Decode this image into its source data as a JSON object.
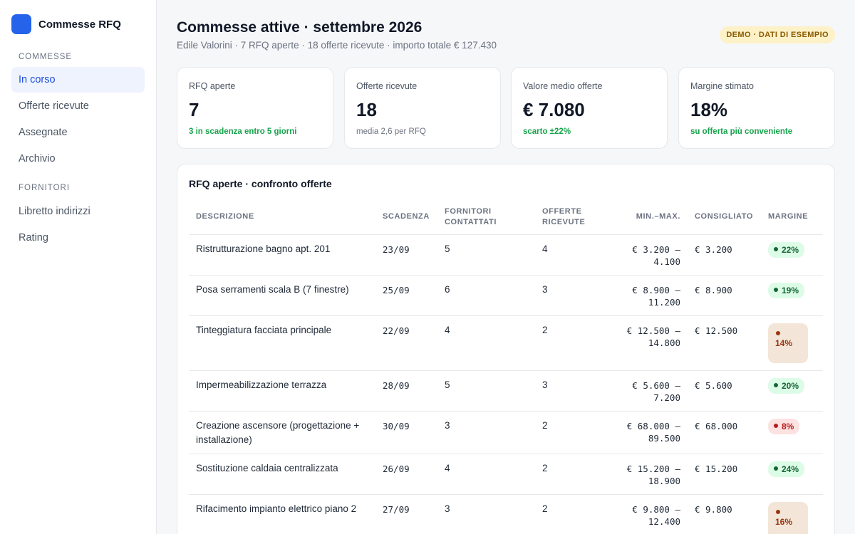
{
  "sidebar": {
    "brand": "Commesse RFQ",
    "sections": [
      {
        "title": "COMMESSE",
        "items": [
          "In corso",
          "Offerte ricevute",
          "Assegnate",
          "Archivio"
        ]
      },
      {
        "title": "FORNITORI",
        "items": [
          "Libretto indirizzi",
          "Rating"
        ]
      }
    ],
    "active_item": "In corso"
  },
  "header": {
    "title": "Commesse attive · settembre 2026",
    "subtitle": "Edile Valorini · 7 RFQ aperte · 18 offerte ricevute · importo totale € 127.430",
    "badge": "DEMO · DATI DI ESEMPIO"
  },
  "kpis": [
    {
      "label": "RFQ aperte",
      "value": "7",
      "note": "3 in scadenza entro 5 giorni",
      "note_style": "green"
    },
    {
      "label": "Offerte ricevute",
      "value": "18",
      "note": "media 2,6 per RFQ",
      "note_style": "muted"
    },
    {
      "label": "Valore medio offerte",
      "value": "€ 7.080",
      "note": "scarto ±22%",
      "note_style": "green"
    },
    {
      "label": "Margine stimato",
      "value": "18%",
      "note": "su offerta più conveniente",
      "note_style": "green"
    }
  ],
  "table": {
    "title": "RFQ aperte · confronto offerte",
    "columns": [
      "DESCRIZIONE",
      "SCADENZA",
      "FORNITORI CONTATTATI",
      "OFFERTE RICEVUTE",
      "MIN.–MAX.",
      "CONSIGLIATO",
      "MARGINE"
    ],
    "rows": [
      {
        "descrizione": "Ristrutturazione bagno apt. 201",
        "scadenza": "23/09",
        "fornitori": "5",
        "offerte": "4",
        "min": "€ 3.200 –",
        "max": "4.100",
        "consigliato": "€ 3.200",
        "margine": "22%",
        "status": "good"
      },
      {
        "descrizione": "Posa serramenti scala B (7 finestre)",
        "scadenza": "25/09",
        "fornitori": "6",
        "offerte": "3",
        "min": "€ 8.900 –",
        "max": "11.200",
        "consigliato": "€ 8.900",
        "margine": "19%",
        "status": "good"
      },
      {
        "descrizione": "Tinteggiatura facciata principale",
        "scadenza": "22/09",
        "fornitori": "4",
        "offerte": "2",
        "min": "€ 12.500 –",
        "max": "14.800",
        "consigliato": "€ 12.500",
        "margine": "14%",
        "status": "warn"
      },
      {
        "descrizione": "Impermeabilizzazione terrazza",
        "scadenza": "28/09",
        "fornitori": "5",
        "offerte": "3",
        "min": "€ 5.600 –",
        "max": "7.200",
        "consigliato": "€ 5.600",
        "margine": "20%",
        "status": "good"
      },
      {
        "descrizione": "Creazione ascensore (progettazione + installazione)",
        "scadenza": "30/09",
        "fornitori": "3",
        "offerte": "2",
        "min": "€ 68.000 –",
        "max": "89.500",
        "consigliato": "€ 68.000",
        "margine": "8%",
        "status": "bad"
      },
      {
        "descrizione": "Sostituzione caldaia centralizzata",
        "scadenza": "26/09",
        "fornitori": "4",
        "offerte": "2",
        "min": "€ 15.200 –",
        "max": "18.900",
        "consigliato": "€ 15.200",
        "margine": "24%",
        "status": "good"
      },
      {
        "descrizione": "Rifacimento impianto elettrico piano 2",
        "scadenza": "27/09",
        "fornitori": "3",
        "offerte": "2",
        "min": "€ 9.800 –",
        "max": "12.400",
        "consigliato": "€ 9.800",
        "margine": "16%",
        "status": "warn"
      }
    ]
  },
  "colors": {
    "accent": "#2563eb",
    "good": "#166534",
    "warn": "#9a3412",
    "bad": "#b91c1c"
  }
}
